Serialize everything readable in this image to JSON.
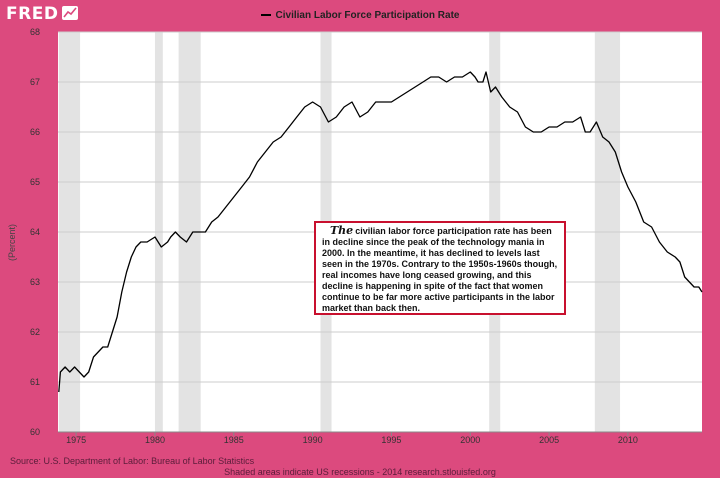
{
  "logo": {
    "text": "FRED"
  },
  "chart_data": {
    "type": "line",
    "title": "Civilian Labor Force Participation Rate",
    "ylabel": "(Percent)",
    "xlabel": "",
    "ylim": [
      60,
      68
    ],
    "xlim": [
      1973.85,
      2014.7
    ],
    "yticks": [
      60,
      61,
      62,
      63,
      64,
      65,
      66,
      67,
      68
    ],
    "xticks": [
      1975,
      1980,
      1985,
      1990,
      1995,
      2000,
      2005,
      2010
    ],
    "grid": true,
    "colors": {
      "line": "#000000",
      "recession": "#e3e3e3",
      "plot_bg": "#ffffff",
      "page_bg": "#dc4a7e"
    },
    "recessions": [
      [
        1973.9,
        1975.25
      ],
      [
        1980.0,
        1980.5
      ],
      [
        1981.5,
        1982.9
      ],
      [
        1990.5,
        1991.2
      ],
      [
        2001.2,
        2001.9
      ],
      [
        2007.9,
        2009.5
      ]
    ],
    "series": [
      {
        "name": "Civilian Labor Force Participation Rate",
        "x": [
          1973.9,
          1974.0,
          1974.3,
          1974.6,
          1974.9,
          1975.2,
          1975.5,
          1975.8,
          1976.1,
          1976.4,
          1976.7,
          1977.0,
          1977.3,
          1977.6,
          1977.9,
          1978.2,
          1978.5,
          1978.8,
          1979.1,
          1979.5,
          1980.0,
          1980.4,
          1980.8,
          1981.0,
          1981.3,
          1981.6,
          1982.0,
          1982.4,
          1982.8,
          1983.2,
          1983.6,
          1984.0,
          1984.5,
          1985.0,
          1985.5,
          1986.0,
          1986.5,
          1987.0,
          1987.5,
          1988.0,
          1988.5,
          1989.0,
          1989.5,
          1990.0,
          1990.5,
          1991.0,
          1991.5,
          1992.0,
          1992.5,
          1993.0,
          1993.5,
          1994.0,
          1994.5,
          1995.0,
          1995.5,
          1996.0,
          1996.5,
          1997.0,
          1997.5,
          1998.0,
          1998.5,
          1999.0,
          1999.5,
          2000.0,
          2000.3,
          2000.5,
          2000.8,
          2001.0,
          2001.3,
          2001.6,
          2002.0,
          2002.5,
          2003.0,
          2003.5,
          2004.0,
          2004.5,
          2005.0,
          2005.5,
          2006.0,
          2006.5,
          2007.0,
          2007.3,
          2007.6,
          2008.0,
          2008.4,
          2008.8,
          2009.2,
          2009.6,
          2010.0,
          2010.5,
          2011.0,
          2011.5,
          2012.0,
          2012.5,
          2013.0,
          2013.3,
          2013.6,
          2013.9,
          2014.2,
          2014.5,
          2014.7
        ],
        "values": [
          60.8,
          61.2,
          61.3,
          61.2,
          61.3,
          61.2,
          61.1,
          61.2,
          61.5,
          61.6,
          61.7,
          61.7,
          62.0,
          62.3,
          62.8,
          63.2,
          63.5,
          63.7,
          63.8,
          63.8,
          63.9,
          63.7,
          63.8,
          63.9,
          64.0,
          63.9,
          63.8,
          64.0,
          64.0,
          64.0,
          64.2,
          64.3,
          64.5,
          64.7,
          64.9,
          65.1,
          65.4,
          65.6,
          65.8,
          65.9,
          66.1,
          66.3,
          66.5,
          66.6,
          66.5,
          66.2,
          66.3,
          66.5,
          66.6,
          66.3,
          66.4,
          66.6,
          66.6,
          66.6,
          66.7,
          66.8,
          66.9,
          67.0,
          67.1,
          67.1,
          67.0,
          67.1,
          67.1,
          67.2,
          67.1,
          67.0,
          67.0,
          67.2,
          66.8,
          66.9,
          66.7,
          66.5,
          66.4,
          66.1,
          66.0,
          66.0,
          66.1,
          66.1,
          66.2,
          66.2,
          66.3,
          66.0,
          66.0,
          66.2,
          65.9,
          65.8,
          65.6,
          65.2,
          64.9,
          64.6,
          64.2,
          64.1,
          63.8,
          63.6,
          63.5,
          63.4,
          63.1,
          63.0,
          62.9,
          62.9,
          62.8
        ]
      }
    ]
  },
  "annotation": {
    "dropcap": "The",
    "text": "civilian labor force participation rate has been in decline since the peak of the technology mania in 2000. In the meantime, it has declined to levels last seen in the 1970s. Contrary to the 1950s-1960s though, real incomes have long ceased growing, and this decline is happening in spite of the fact that women continue to be far more active participants in the labor market than back then."
  },
  "footer": {
    "source": "Source: U.S. Department of Labor: Bureau of Labor Statistics",
    "note": "Shaded areas indicate US recessions - 2014 research.stlouisfed.org"
  }
}
